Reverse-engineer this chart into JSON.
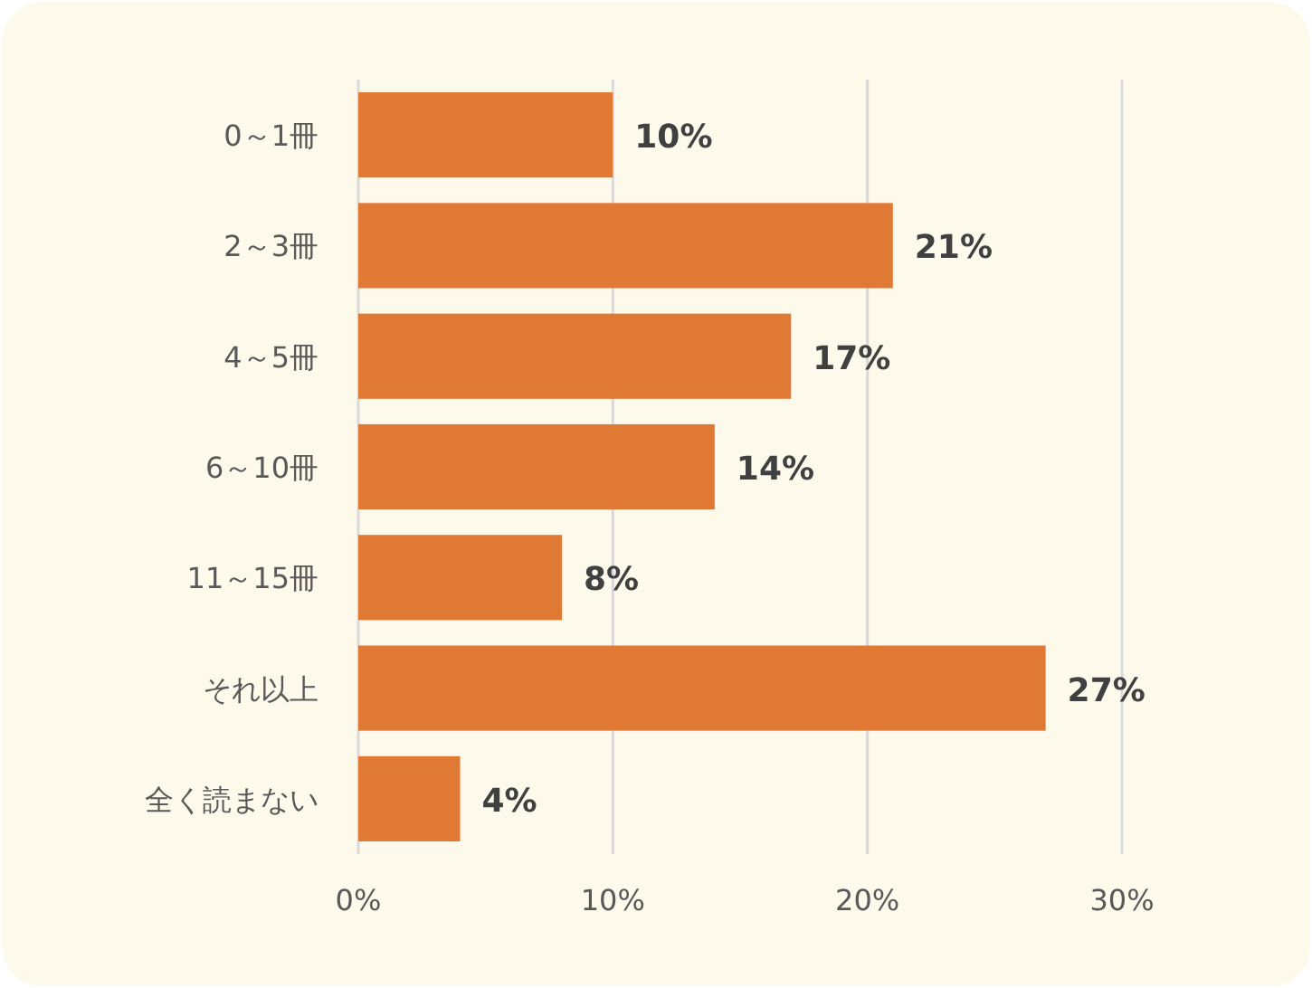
{
  "chart_data": {
    "type": "bar",
    "orientation": "horizontal",
    "categories": [
      "0～1冊",
      "2～3冊",
      "4～5冊",
      "6～10冊",
      "11～15冊",
      "それ以上",
      "全く読まない"
    ],
    "values": [
      10,
      21,
      17,
      14,
      8,
      27,
      4
    ],
    "color": "#e07933",
    "xlim": [
      0,
      30
    ],
    "xticks": [
      {
        "value": 0,
        "label": "0%"
      },
      {
        "value": 10,
        "label": "10%"
      },
      {
        "value": 20,
        "label": "20%"
      },
      {
        "value": 30,
        "label": "30%"
      }
    ],
    "value_labels": [
      "10%",
      "21%",
      "17%",
      "14%",
      "8%",
      "27%",
      "4%"
    ],
    "grid": "x"
  }
}
